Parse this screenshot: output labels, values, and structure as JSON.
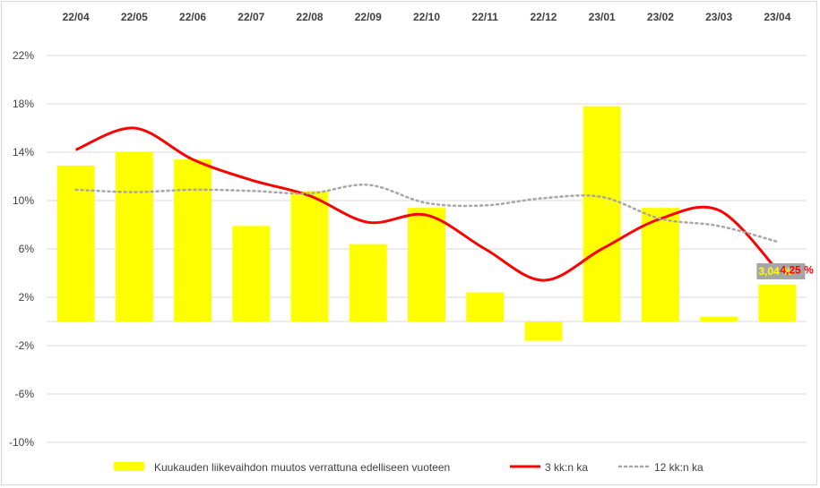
{
  "chart_data": {
    "type": "bar",
    "categories": [
      "22/04",
      "22/05",
      "22/06",
      "22/07",
      "22/08",
      "22/09",
      "22/10",
      "22/11",
      "22/12",
      "23/01",
      "23/02",
      "23/03",
      "23/04"
    ],
    "y_ticks": [
      "22%",
      "18%",
      "14%",
      "10%",
      "6%",
      "2%",
      "-2%",
      "-6%",
      "-10%"
    ],
    "ylim": [
      -10,
      22
    ],
    "y_unit": "%",
    "grid": true,
    "legend_position": "bottom",
    "series": [
      {
        "name": "Kuukauden liikevaihdon muutos verrattuna edelliseen vuoteen",
        "type": "bar",
        "color": "#ffff00",
        "values": [
          12.9,
          14.0,
          13.4,
          7.9,
          10.8,
          6.4,
          9.4,
          2.4,
          -1.6,
          17.8,
          9.4,
          0.4,
          3.04
        ]
      },
      {
        "name": "3 kk:n ka",
        "type": "line",
        "color": "#ff0000",
        "smooth": true,
        "values": [
          14.2,
          16.0,
          13.4,
          11.7,
          10.4,
          8.2,
          8.8,
          6.0,
          3.4,
          6.0,
          8.5,
          9.2,
          4.25
        ]
      },
      {
        "name": "12 kk:n ka",
        "type": "line",
        "color": "#a6a6a6",
        "dash": "dotted",
        "smooth": true,
        "values": [
          10.9,
          10.7,
          10.9,
          10.8,
          10.6,
          11.3,
          9.8,
          9.6,
          10.2,
          10.3,
          8.5,
          7.9,
          6.6
        ]
      }
    ],
    "data_labels": [
      {
        "series": "Kuukauden liikevaihdon muutos verrattuna edelliseen vuoteen",
        "category": "23/04",
        "text": "3,04 %",
        "color": "#ffff00",
        "background": "#a6a6a6"
      },
      {
        "series": "3 kk:n ka",
        "category": "23/04",
        "text": "4,25 %",
        "color": "#ff0000"
      }
    ]
  }
}
